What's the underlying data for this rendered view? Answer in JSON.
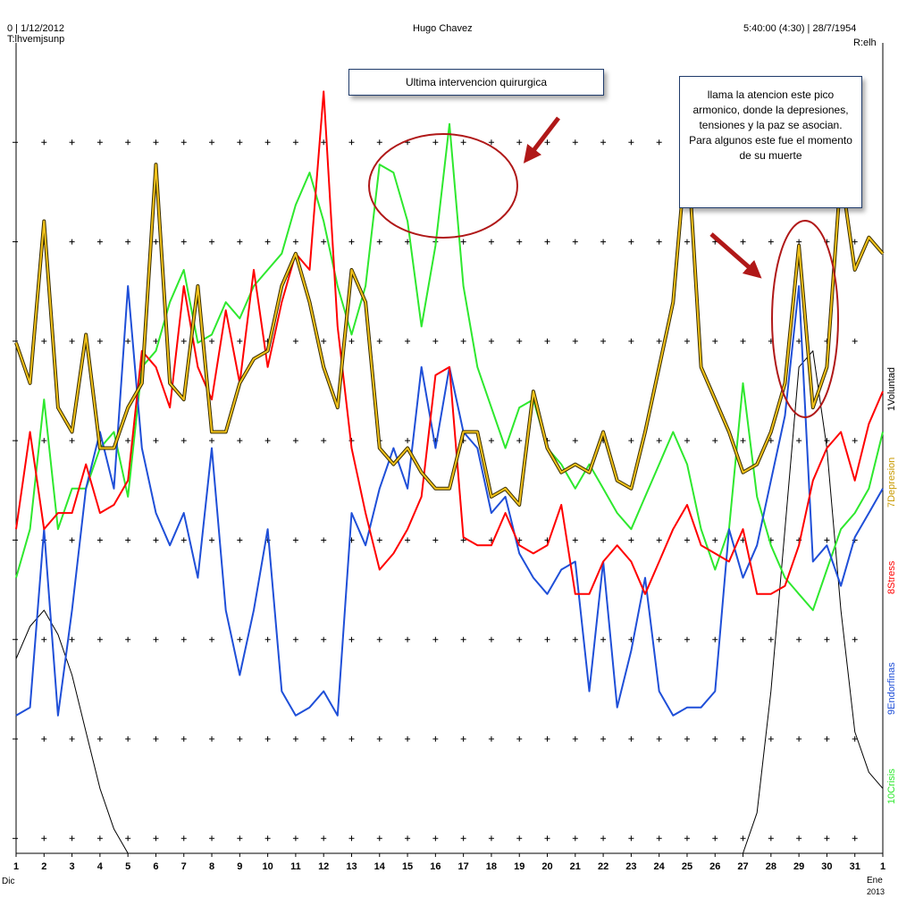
{
  "header": {
    "top_left": "0 | 1/12/2012",
    "top_left_sub": "T:lhvemjsunp",
    "title": "Hugo Chavez",
    "top_right": "5:40:00 (4:30) | 28/7/1954",
    "top_right_sub": "R:elh"
  },
  "callouts": {
    "surgery": "Ultima intervencion quirurgica",
    "peak": "llama la atencion este pico armonico, donde la depresiones, tensiones y la paz se asocian. Para algunos este fue el momento de su muerte"
  },
  "footer": {
    "left_month": "Dic",
    "right_month": "Ene",
    "right_year": "2013"
  },
  "colors": {
    "voluntad": "#000000",
    "depresion": "#f2c21a",
    "depresion_outline": "#3a2e00",
    "stress": "#ff0000",
    "endorfinas": "#1f4fd8",
    "crisis": "#2ee82e",
    "grid": "#000000",
    "callout_ring": "#b01818"
  },
  "chart_data": {
    "type": "line",
    "title": "Hugo Chavez",
    "x_tick_labels": [
      "1",
      "2",
      "3",
      "4",
      "5",
      "6",
      "7",
      "8",
      "9",
      "10",
      "11",
      "12",
      "13",
      "14",
      "15",
      "16",
      "17",
      "18",
      "19",
      "20",
      "21",
      "22",
      "23",
      "24",
      "25",
      "26",
      "27",
      "28",
      "29",
      "30",
      "31",
      "1"
    ],
    "x": [
      1,
      1.5,
      2,
      2.5,
      3,
      3.5,
      4,
      4.5,
      5,
      5.5,
      6,
      6.5,
      7,
      7.5,
      8,
      8.5,
      9,
      9.5,
      10,
      10.5,
      11,
      11.5,
      12,
      12.5,
      13,
      13.5,
      14,
      14.5,
      15,
      15.5,
      16,
      16.5,
      17,
      17.5,
      18,
      18.5,
      19,
      19.5,
      20,
      20.5,
      21,
      21.5,
      22,
      22.5,
      23,
      23.5,
      24,
      24.5,
      25,
      25.5,
      26,
      26.5,
      27,
      27.5,
      28,
      28.5,
      29,
      29.5,
      30,
      30.5,
      31,
      31.5,
      32
    ],
    "ylim": [
      0,
      100
    ],
    "series": [
      {
        "name": "1Voluntad",
        "color": "#000000",
        "values": [
          24,
          28,
          30,
          27,
          22,
          15,
          8,
          3,
          0,
          0,
          0,
          0,
          0,
          0,
          0,
          0,
          0,
          0,
          0,
          0,
          0,
          0,
          0,
          0,
          0,
          0,
          0,
          0,
          0,
          0,
          0,
          0,
          0,
          0,
          0,
          0,
          0,
          0,
          0,
          0,
          0,
          0,
          0,
          0,
          0,
          0,
          0,
          0,
          0,
          0,
          0,
          0,
          0,
          5,
          20,
          40,
          60,
          62,
          50,
          30,
          15,
          10,
          8
        ]
      },
      {
        "name": "7Depresion",
        "color": "#f2c21a",
        "values": [
          63,
          58,
          78,
          55,
          52,
          64,
          50,
          50,
          55,
          58,
          85,
          58,
          56,
          70,
          52,
          52,
          58,
          61,
          62,
          70,
          74,
          68,
          60,
          55,
          72,
          68,
          50,
          48,
          50,
          47,
          45,
          45,
          52,
          52,
          44,
          45,
          43,
          57,
          50,
          47,
          48,
          47,
          52,
          46,
          45,
          52,
          60,
          68,
          88,
          60,
          56,
          52,
          47,
          48,
          52,
          58,
          75,
          55,
          60,
          84,
          72,
          76,
          74
        ]
      },
      {
        "name": "8Stress",
        "color": "#ff0000",
        "values": [
          40,
          52,
          40,
          42,
          42,
          48,
          42,
          43,
          46,
          62,
          60,
          55,
          70,
          60,
          56,
          67,
          58,
          72,
          60,
          68,
          74,
          72,
          94,
          65,
          50,
          42,
          35,
          37,
          40,
          44,
          59,
          60,
          39,
          38,
          38,
          42,
          38,
          37,
          38,
          43,
          32,
          32,
          36,
          38,
          36,
          32,
          36,
          40,
          43,
          38,
          37,
          36,
          40,
          32,
          32,
          33,
          38,
          46,
          50,
          52,
          46,
          53,
          57
        ]
      },
      {
        "name": "9Endorfinas",
        "color": "#1f4fd8",
        "values": [
          17,
          18,
          40,
          17,
          30,
          45,
          52,
          45,
          70,
          50,
          42,
          38,
          42,
          34,
          50,
          30,
          22,
          30,
          40,
          20,
          17,
          18,
          20,
          17,
          42,
          38,
          45,
          50,
          45,
          60,
          50,
          60,
          52,
          50,
          42,
          44,
          37,
          34,
          32,
          35,
          36,
          20,
          36,
          18,
          25,
          34,
          20,
          17,
          18,
          18,
          20,
          40,
          34,
          38,
          46,
          54,
          70,
          36,
          38,
          33,
          39,
          42,
          45
        ]
      },
      {
        "name": "10Crisis",
        "color": "#2ee82e",
        "values": [
          34,
          40,
          56,
          40,
          45,
          45,
          50,
          52,
          44,
          60,
          62,
          68,
          72,
          63,
          64,
          68,
          66,
          70,
          72,
          74,
          80,
          84,
          78,
          70,
          64,
          70,
          85,
          84,
          78,
          65,
          75,
          90,
          70,
          60,
          55,
          50,
          55,
          56,
          50,
          48,
          45,
          48,
          45,
          42,
          40,
          44,
          48,
          52,
          48,
          40,
          35,
          40,
          58,
          44,
          38,
          34,
          32,
          30,
          35,
          40,
          42,
          45,
          52
        ]
      }
    ]
  }
}
